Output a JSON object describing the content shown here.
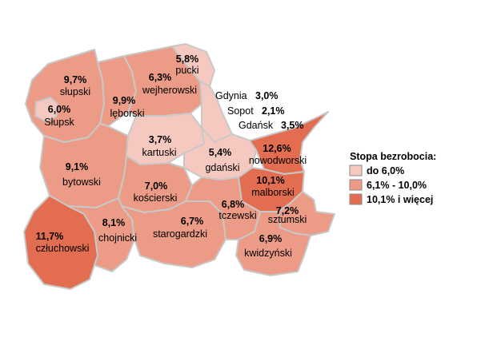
{
  "colors": {
    "low": "#f6c9c0",
    "mid": "#eb9b86",
    "high": "#e36d50",
    "border": "#c8c8c8"
  },
  "legend": {
    "title": "Stopa bezrobocia:",
    "items": [
      {
        "label": "do 6,0%",
        "color_key": "low"
      },
      {
        "label": "6,1% - 10,0%",
        "color_key": "mid"
      },
      {
        "label": "10,1% i więcej",
        "color_key": "high"
      }
    ]
  },
  "regions": [
    {
      "id": "pucki",
      "name": "pucki",
      "value": "5,8%",
      "class": "low"
    },
    {
      "id": "slupski",
      "name": "słupski",
      "value": "9,7%",
      "class": "mid"
    },
    {
      "id": "slupsk",
      "name": "Słupsk",
      "value": "6,0%",
      "class": "low"
    },
    {
      "id": "wejherowski",
      "name": "wejherowski",
      "value": "6,3%",
      "class": "mid"
    },
    {
      "id": "leborski",
      "name": "lęborski",
      "value": "9,9%",
      "class": "mid"
    },
    {
      "id": "kartuski",
      "name": "kartuski",
      "value": "3,7%",
      "class": "low"
    },
    {
      "id": "gdanski",
      "name": "gdański",
      "value": "5,4%",
      "class": "low"
    },
    {
      "id": "nowodworski",
      "name": "nowodworski",
      "value": "12,6%",
      "class": "high"
    },
    {
      "id": "bytowski",
      "name": "bytowski",
      "value": "9,1%",
      "class": "mid"
    },
    {
      "id": "koscierski",
      "name": "kościerski",
      "value": "7,0%",
      "class": "mid"
    },
    {
      "id": "malborski",
      "name": "malborski",
      "value": "10,1%",
      "class": "high"
    },
    {
      "id": "czluchowski",
      "name": "człuchowski",
      "value": "11,7%",
      "class": "high"
    },
    {
      "id": "chojnicki",
      "name": "chojnicki",
      "value": "8,1%",
      "class": "mid"
    },
    {
      "id": "starogardzki",
      "name": "starogardzki",
      "value": "6,7%",
      "class": "mid"
    },
    {
      "id": "tczewski",
      "name": "tczewski",
      "value": "6,8%",
      "class": "mid"
    },
    {
      "id": "sztumski",
      "name": "sztumski",
      "value": "7,2%",
      "class": "mid"
    },
    {
      "id": "kwidzynski",
      "name": "kwidzyński",
      "value": "6,9%",
      "class": "mid"
    }
  ],
  "cities": [
    {
      "id": "gdynia",
      "name": "Gdynia",
      "value": "3,0%"
    },
    {
      "id": "sopot",
      "name": "Sopot",
      "value": "2,1%"
    },
    {
      "id": "gdansk",
      "name": "Gdańsk",
      "value": "3,5%"
    }
  ]
}
